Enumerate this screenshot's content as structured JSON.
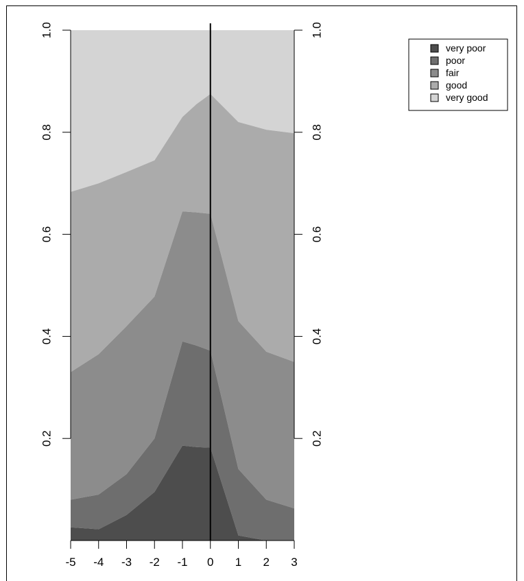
{
  "chart_data": {
    "type": "area",
    "stacked": true,
    "x": [
      -5,
      -4,
      -3,
      -2,
      -1,
      -0.5,
      0,
      1,
      2,
      3
    ],
    "xlim": [
      -5,
      3
    ],
    "ylim": [
      0,
      1
    ],
    "x_ticks": [
      -5,
      -4,
      -3,
      -2,
      -1,
      0,
      1,
      2,
      3
    ],
    "y_ticks": [
      "0.2",
      "0.4",
      "0.6",
      "0.8",
      "1.0"
    ],
    "y_tick_values": [
      0.2,
      0.4,
      0.6,
      0.8,
      1.0
    ],
    "vertical_reference_line": 0,
    "series": [
      {
        "name": "very poor",
        "cumulative": [
          0.026,
          0.022,
          0.05,
          0.095,
          0.186,
          0.183,
          0.182,
          0.01,
          0.0,
          0.0
        ],
        "color": "#4d4d4d"
      },
      {
        "name": "poor",
        "cumulative": [
          0.08,
          0.09,
          0.13,
          0.2,
          0.39,
          0.382,
          0.372,
          0.14,
          0.08,
          0.063
        ],
        "color": "#6e6e6e"
      },
      {
        "name": "fair",
        "cumulative": [
          0.33,
          0.365,
          0.42,
          0.478,
          0.645,
          0.643,
          0.64,
          0.43,
          0.37,
          0.35
        ],
        "color": "#8c8c8c"
      },
      {
        "name": "good",
        "cumulative": [
          0.683,
          0.7,
          0.722,
          0.745,
          0.83,
          0.855,
          0.875,
          0.82,
          0.805,
          0.798
        ],
        "color": "#ababab"
      },
      {
        "name": "very good",
        "cumulative": [
          1.0,
          1.0,
          1.0,
          1.0,
          1.0,
          1.0,
          1.0,
          1.0,
          1.0,
          1.0
        ],
        "color": "#d4d4d4"
      }
    ],
    "legend": {
      "position": "top-right",
      "entries": [
        "very poor",
        "poor",
        "fair",
        "good",
        "very good"
      ]
    },
    "grid": false
  }
}
